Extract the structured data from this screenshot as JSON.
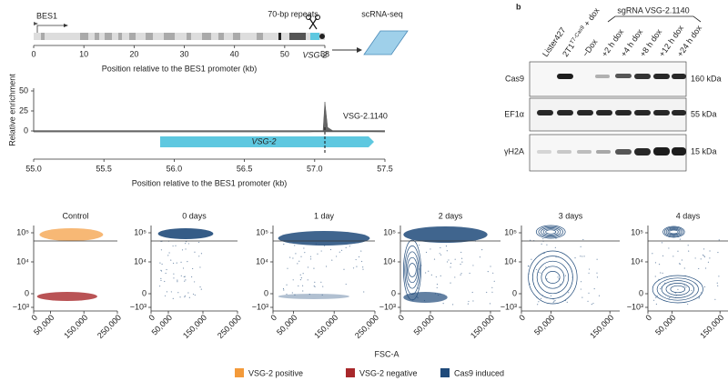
{
  "locus": {
    "gene": "BES1",
    "repeats": "70-bp repeats",
    "vsg": "VSG-2",
    "output": "scRNA-seq",
    "ticks": [
      "0",
      "10",
      "20",
      "30",
      "40",
      "50",
      "58"
    ],
    "axis_label": "Position relative to the BES1 promoter (kb)"
  },
  "enrichment": {
    "y_label": "Relative enrichment",
    "yticks": [
      "0",
      "25",
      "50"
    ],
    "track": "VSG-2.1140",
    "gene": "VSG-2",
    "xticks": [
      "55.0",
      "55.5",
      "56.0",
      "56.5",
      "57.0",
      "57.5"
    ],
    "axis_label": "Position relative to the BES1 promoter (kb)"
  },
  "blot": {
    "panel": "b",
    "group": "sgRNA VSG-2.1140",
    "lanes": [
      {
        "text": "Lister427"
      },
      {
        "text": "2T1",
        "sup": "T7-Cas9",
        "suffix": " + dox"
      },
      {
        "text": "−Dox"
      },
      {
        "text": "+2 h dox"
      },
      {
        "text": "+4 h dox"
      },
      {
        "text": "+8 h dox"
      },
      {
        "text": "+12 h dox"
      },
      {
        "text": "+24 h dox"
      }
    ],
    "rows": [
      {
        "protein": "Cas9",
        "size": "160 kDa"
      },
      {
        "protein": "EF1α",
        "size": "55 kDa"
      },
      {
        "protein": "γH2A",
        "size": "15 kDa"
      }
    ]
  },
  "flow": {
    "yticks": [
      "10⁵",
      "10⁴",
      "0",
      "−10³"
    ],
    "x_label": "FSC-A",
    "panels": [
      {
        "title": "Control",
        "xticks": [
          "0",
          "50,000",
          "150,000",
          "250,000"
        ]
      },
      {
        "title": "0 days",
        "xticks": [
          "0",
          "50,000",
          "150,000",
          "250,000"
        ]
      },
      {
        "title": "1 day",
        "xticks": [
          "0",
          "50,000",
          "150,000",
          "250,000"
        ]
      },
      {
        "title": "2 days",
        "xticks": [
          "0",
          "50,000",
          "150,000"
        ]
      },
      {
        "title": "3 days",
        "xticks": [
          "0",
          "50,000",
          "150,000"
        ]
      },
      {
        "title": "4 days",
        "xticks": [
          "0",
          "50,000",
          "150,000"
        ]
      }
    ],
    "legend": [
      {
        "name": "VSG-2 positive",
        "color": "#f39a3a"
      },
      {
        "name": "VSG-2 negative",
        "color": "#a8282b"
      },
      {
        "name": "Cas9 induced",
        "color": "#1f4a7a"
      }
    ]
  }
}
